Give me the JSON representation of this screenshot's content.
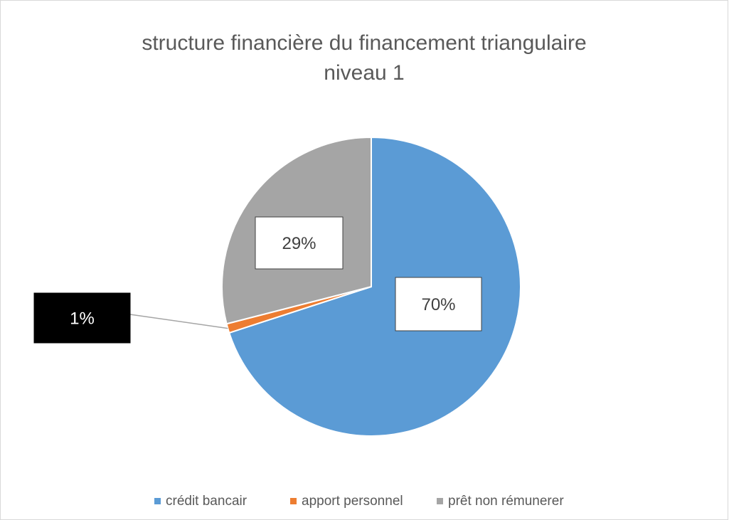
{
  "chart_data": {
    "type": "pie",
    "title": [
      "structure financière du financement triangulaire",
      "niveau 1"
    ],
    "categories": [
      "crédit bancair",
      "apport personnel",
      "prêt non rémunerer"
    ],
    "values": [
      70,
      1,
      29
    ],
    "value_labels": [
      "70%",
      "1%",
      "29%"
    ],
    "colors": [
      "#5b9bd5",
      "#ed7d31",
      "#a5a5a5"
    ]
  }
}
